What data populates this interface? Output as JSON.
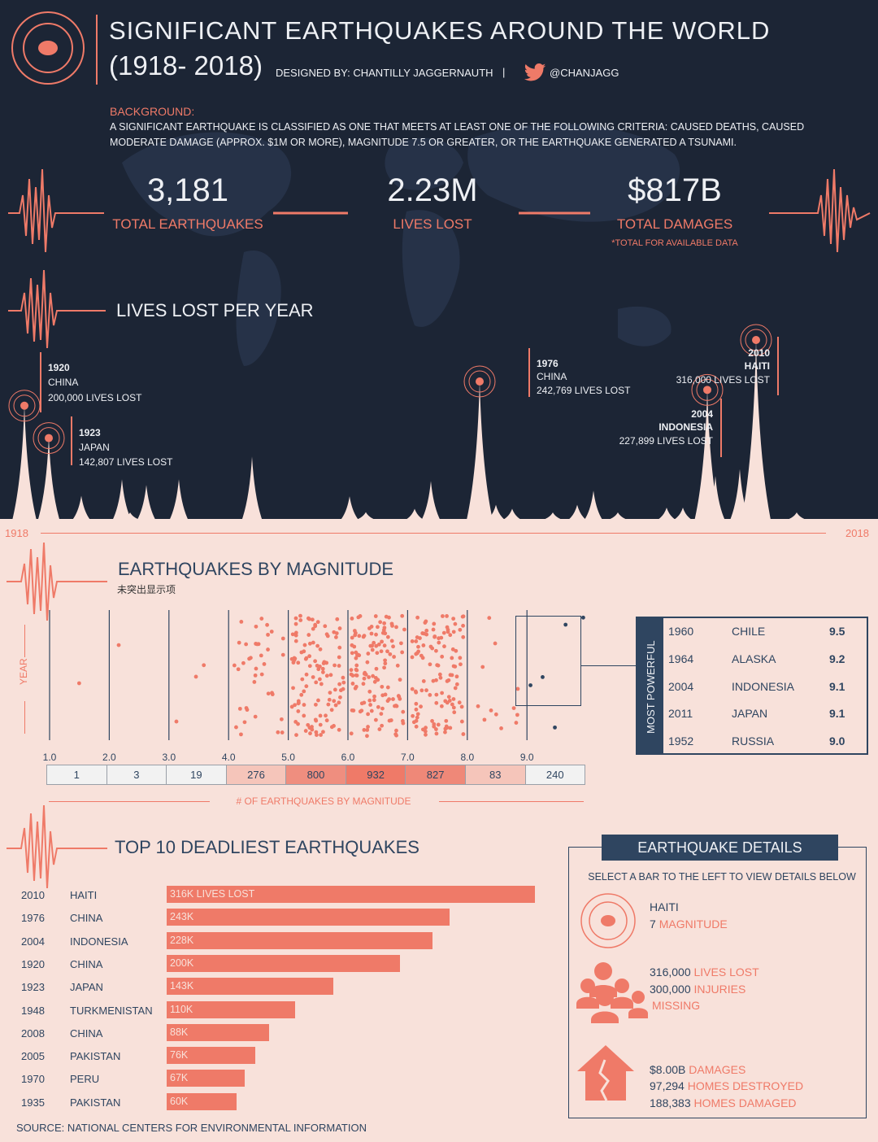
{
  "header": {
    "title_line1": "SIGNIFICANT EARTHQUAKES AROUND THE WORLD",
    "title_line2": "(1918- 2018)",
    "designed_by": "DESIGNED BY: CHANTILLY JAGGERNAUTH",
    "separator": "|",
    "twitter_handle": "@CHANJAGG"
  },
  "background": {
    "label": "BACKGROUND:",
    "text_line1": "A SIGNIFICANT EARTHQUAKE IS CLASSIFIED AS ONE THAT MEETS AT LEAST ONE OF THE FOLLOWING CRITERIA: CAUSED DEATHS, CAUSED",
    "text_line2": "MODERATE DAMAGE (APPROX. $1M OR MORE), MAGNITUDE 7.5 OR GREATER, OR THE EARTHQUAKE GENERATED A TSUNAMI."
  },
  "kpis": [
    {
      "value": "3,181",
      "label": "TOTAL EARTHQUAKES"
    },
    {
      "value": "2.23M",
      "label": "LIVES LOST"
    },
    {
      "value": "$817B",
      "label": "TOTAL DAMAGES"
    }
  ],
  "kpi_note": "*TOTAL FOR AVAILABLE DATA",
  "lives_section": {
    "title": "LIVES LOST PER YEAR",
    "start_year": "1918",
    "end_year": "2018",
    "annotations": [
      {
        "year": "1920",
        "country": "CHINA",
        "text": "200,000 LIVES LOST"
      },
      {
        "year": "1923",
        "country": "JAPAN",
        "text": "142,807 LIVES LOST"
      },
      {
        "year": "1976",
        "country": "CHINA",
        "text": "242,769 LIVES LOST"
      },
      {
        "year": "2004",
        "country": "INDONESIA",
        "text": "227,899 LIVES LOST"
      },
      {
        "year": "2010",
        "country": "HAITI",
        "text": "316,000 LIVES LOST"
      }
    ]
  },
  "magnitude_section": {
    "title": "EARTHQUAKES BY MAGNITUDE",
    "subtitle": "未突出显示项",
    "y_label": "YEAR",
    "x_ticks": [
      "1.0",
      "2.0",
      "3.0",
      "4.0",
      "5.0",
      "6.0",
      "7.0",
      "8.0",
      "9.0"
    ],
    "bin_counts": [
      "1",
      "3",
      "19",
      "276",
      "800",
      "932",
      "827",
      "83",
      "240"
    ],
    "bin_caption": "# OF EARTHQUAKES BY MAGNITUDE",
    "most_powerful_label": "MOST POWERFUL",
    "most_powerful": [
      {
        "year": "1960",
        "country": "CHILE",
        "magnitude": "9.5"
      },
      {
        "year": "1964",
        "country": "ALASKA",
        "magnitude": "9.2"
      },
      {
        "year": "2004",
        "country": "INDONESIA",
        "magnitude": "9.1"
      },
      {
        "year": "2011",
        "country": "JAPAN",
        "magnitude": "9.1"
      },
      {
        "year": "1952",
        "country": "RUSSIA",
        "magnitude": "9.0"
      }
    ]
  },
  "deadliest_section": {
    "title": "TOP 10 DEADLIEST EARTHQUAKES",
    "rows": [
      {
        "year": "2010",
        "country": "HAITI",
        "label": "316K LIVES LOST"
      },
      {
        "year": "1976",
        "country": "CHINA",
        "label": "243K"
      },
      {
        "year": "2004",
        "country": "INDONESIA",
        "label": "228K"
      },
      {
        "year": "1920",
        "country": "CHINA",
        "label": "200K"
      },
      {
        "year": "1923",
        "country": "JAPAN",
        "label": "143K"
      },
      {
        "year": "1948",
        "country": "TURKMENISTAN",
        "label": "110K"
      },
      {
        "year": "2008",
        "country": "CHINA",
        "label": "88K"
      },
      {
        "year": "2005",
        "country": "PAKISTAN",
        "label": "76K"
      },
      {
        "year": "1970",
        "country": "PERU",
        "label": "67K"
      },
      {
        "year": "1935",
        "country": "PAKISTAN",
        "label": "60K"
      }
    ]
  },
  "details": {
    "title": "EARTHQUAKE DETAILS",
    "instruction": "SELECT A BAR TO THE LEFT TO VIEW DETAILS BELOW",
    "location": "HAITI",
    "magnitude_value": "7",
    "magnitude_label": "MAGNITUDE",
    "lives_value": "316,000",
    "lives_label": "LIVES LOST",
    "injuries_value": "300,000",
    "injuries_label": "INJURIES",
    "missing_label": "MISSING",
    "damages_value": "$8.00B",
    "damages_label": "DAMAGES",
    "destroyed_value": "97,294",
    "destroyed_label": "HOMES DESTROYED",
    "damaged_value": "188,383",
    "damaged_label": "HOMES DAMAGED"
  },
  "source": "SOURCE: NATIONAL CENTERS FOR ENVIRONMENTAL INFORMATION",
  "colors": {
    "navy": "#1c2535",
    "salmon": "#ef7a68",
    "cream": "#f8e1da",
    "slate": "#2f4560"
  },
  "chart_data": [
    {
      "type": "area",
      "title": "LIVES LOST PER YEAR",
      "x": [
        1920,
        1923,
        1927,
        1932,
        1933,
        1935,
        1939,
        1948,
        1960,
        1962,
        1968,
        1970,
        1976,
        1978,
        1980,
        1985,
        1988,
        1990,
        1993,
        1999,
        2001,
        2004,
        2005,
        2008,
        2010,
        2015
      ],
      "y": [
        200000,
        142807,
        41000,
        70000,
        3000,
        60000,
        70000,
        110000,
        40000,
        12000,
        18000,
        67000,
        242769,
        25000,
        18000,
        10000,
        25000,
        50000,
        10000,
        20000,
        20000,
        227899,
        76000,
        88000,
        316000,
        9000
      ],
      "xlim": [
        1918,
        2018
      ],
      "xlabel": "",
      "ylabel": ""
    },
    {
      "type": "bar",
      "title": "# OF EARTHQUAKES BY MAGNITUDE",
      "categories": [
        "1.0",
        "2.0",
        "3.0",
        "4.0",
        "5.0",
        "6.0",
        "7.0",
        "8.0",
        "9.0"
      ],
      "values": [
        1,
        3,
        19,
        276,
        800,
        932,
        827,
        83,
        240
      ]
    },
    {
      "type": "bar",
      "title": "TOP 10 DEADLIEST EARTHQUAKES",
      "categories": [
        "2010 HAITI",
        "1976 CHINA",
        "2004 INDONESIA",
        "1920 CHINA",
        "1923 JAPAN",
        "1948 TURKMENISTAN",
        "2008 CHINA",
        "2005 PAKISTAN",
        "1970 PERU",
        "1935 PAKISTAN"
      ],
      "values": [
        316000,
        243000,
        228000,
        200000,
        143000,
        110000,
        88000,
        76000,
        67000,
        60000
      ]
    }
  ]
}
